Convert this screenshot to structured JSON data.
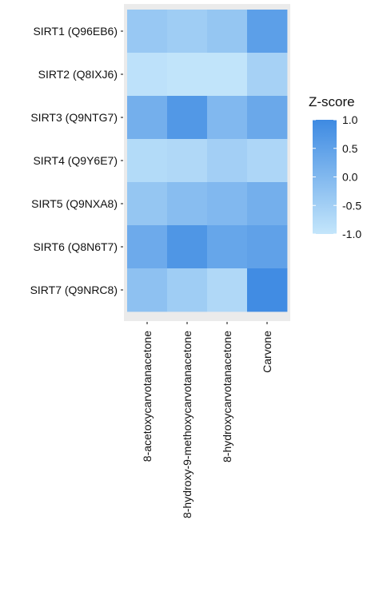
{
  "chart_data": {
    "type": "heatmap",
    "rows": [
      "SIRT1 (Q96EB6)",
      "SIRT2 (Q8IXJ6)",
      "SIRT3 (Q9NTG7)",
      "SIRT4 (Q9Y6E7)",
      "SIRT5 (Q9NXA8)",
      "SIRT6 (Q8N6T7)",
      "SIRT7 (Q9NRC8)"
    ],
    "columns": [
      "8-acetoxycarvotanacetone",
      "8-hydroxy-9-methoxycarvotanacetone",
      "8-hydroxycarvotanacetone",
      "Carvone"
    ],
    "values": [
      [
        -0.35,
        -0.45,
        -0.3,
        0.55
      ],
      [
        -0.9,
        -0.95,
        -0.95,
        -0.55
      ],
      [
        0.2,
        0.7,
        0.0,
        0.35
      ],
      [
        -0.75,
        -0.7,
        -0.5,
        -0.65
      ],
      [
        -0.3,
        -0.1,
        0.0,
        0.2
      ],
      [
        0.3,
        0.75,
        0.4,
        0.5
      ],
      [
        -0.2,
        -0.45,
        -0.7,
        0.95
      ]
    ],
    "colorbar": {
      "title": "Z-score",
      "ticks": [
        "1.0",
        "0.5",
        "0.0",
        "-0.5",
        "-1.0"
      ],
      "tick_values": [
        1.0,
        0.5,
        0.0,
        -0.5,
        -1.0
      ],
      "range": [
        -1.0,
        1.0
      ],
      "low_color": "#c4e6fb",
      "high_color": "#3e8ae2"
    },
    "panel_background": "#ebebeb",
    "grid": false,
    "legend_placement": "right"
  }
}
